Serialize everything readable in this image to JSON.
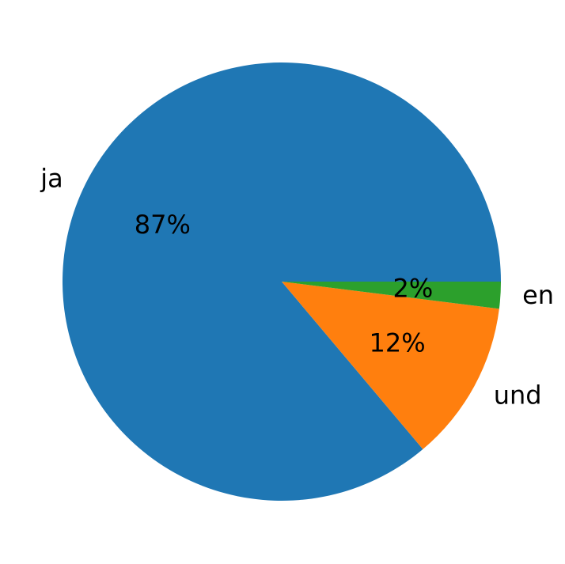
{
  "chart_data": {
    "type": "pie",
    "categories": [
      "ja",
      "und",
      "en"
    ],
    "values": [
      87,
      12,
      2
    ],
    "value_labels": [
      "87%",
      "12%",
      "2%"
    ],
    "colors": [
      "#1f77b4",
      "#ff7f0e",
      "#2ca02c"
    ],
    "start_angle": 0,
    "counterclockwise": true
  }
}
